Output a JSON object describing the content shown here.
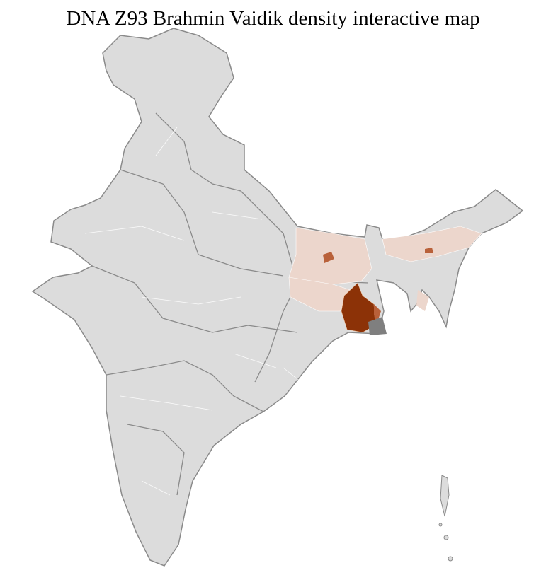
{
  "title": "DNA Z93 Brahmin Vaidik density interactive map",
  "colors": {
    "base": "#dcdcdc",
    "border": "#8a8a8a",
    "district_border": "#ffffff",
    "low": "#ecd6cc",
    "medium": "#b9613a",
    "high": "#8c3207",
    "no_data_dark": "#7f7f7f"
  }
}
